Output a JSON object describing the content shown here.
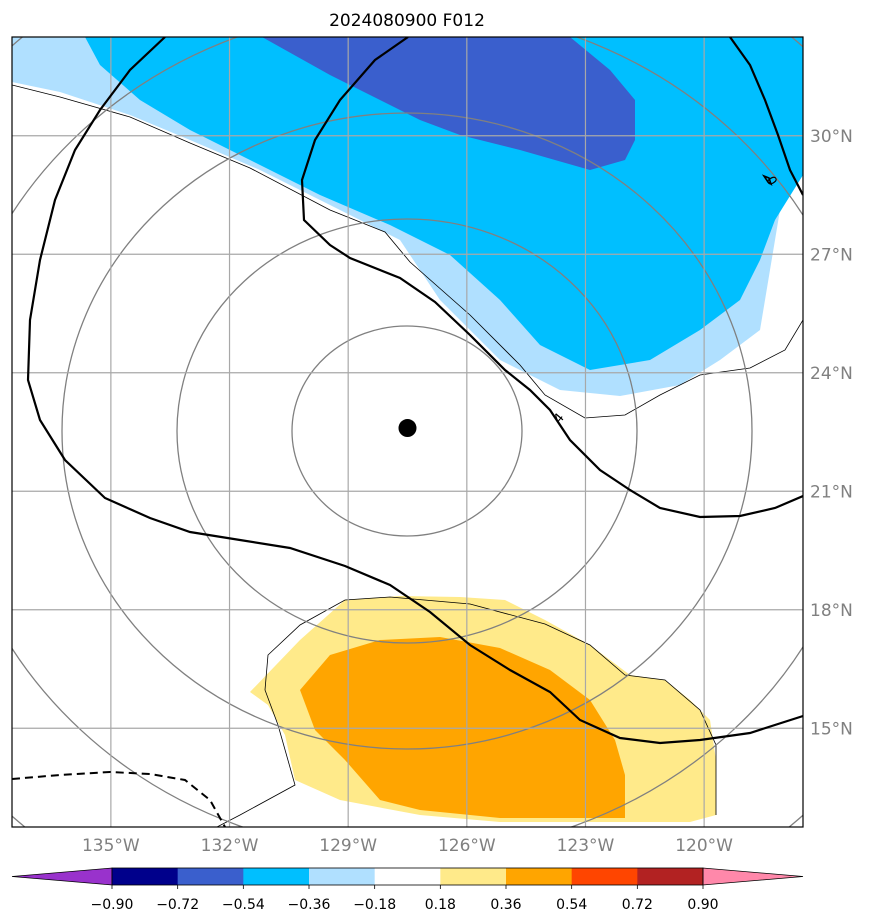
{
  "chart_data": {
    "type": "filled-contour-map",
    "title": "2024080900 F012",
    "lat_ticks": [
      {
        "value": 30,
        "label": "30°N"
      },
      {
        "value": 27,
        "label": "27°N"
      },
      {
        "value": 24,
        "label": "24°N"
      },
      {
        "value": 21,
        "label": "21°N"
      },
      {
        "value": 18,
        "label": "18°N"
      },
      {
        "value": 15,
        "label": "15°N"
      }
    ],
    "lon_ticks": [
      {
        "value": -135,
        "label": "135°W"
      },
      {
        "value": -132,
        "label": "132°W"
      },
      {
        "value": -129,
        "label": "129°W"
      },
      {
        "value": -126,
        "label": "126°W"
      },
      {
        "value": -123,
        "label": "123°W"
      },
      {
        "value": -120,
        "label": "120°W"
      }
    ],
    "lon_range": [
      -137.5,
      -117.5
    ],
    "lat_range": [
      12.5,
      32.5
    ],
    "grid": true,
    "center": {
      "lon": -127.5,
      "lat": 22.6
    },
    "contour_labels": [
      {
        "text": "4",
        "lon": -123.5,
        "lat": 23.4
      },
      {
        "text": "0",
        "lon": -118.5,
        "lat": 29.4
      }
    ],
    "colorbar": {
      "levels": [
        -0.9,
        -0.72,
        -0.54,
        -0.36,
        -0.18,
        0.18,
        0.36,
        0.54,
        0.72,
        0.9
      ],
      "tick_labels": [
        "−0.90",
        "−0.72",
        "−0.54",
        "−0.36",
        "−0.18",
        "0.18",
        "0.36",
        "0.54",
        "0.72",
        "0.90"
      ],
      "colors": [
        "#9932cc",
        "#00008b",
        "#3a5fcd",
        "#00bfff",
        "#b0e0ff",
        "#ffffff",
        "#ffea8a",
        "#ffa500",
        "#ff4500",
        "#b22222",
        "#ff88aa"
      ],
      "extend": "both"
    }
  }
}
